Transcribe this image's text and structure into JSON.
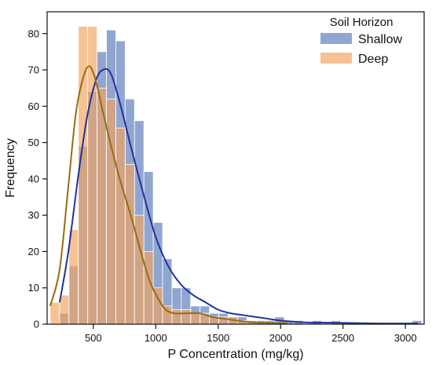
{
  "chart_data": {
    "type": "bar",
    "xlabel": "P Concentration (mg/kg)",
    "ylabel": "Frequency",
    "xlim": [
      130,
      3150
    ],
    "ylim": [
      0,
      86
    ],
    "xticks": [
      500,
      1000,
      1500,
      2000,
      2500,
      3000
    ],
    "yticks": [
      0,
      10,
      20,
      30,
      40,
      50,
      60,
      70,
      80
    ],
    "grid": false,
    "legend": {
      "title": "Soil Horizon",
      "placement": "top-right"
    },
    "bin_width": 75,
    "series": [
      {
        "name": "Shallow",
        "color": "#4c6fb5",
        "kde_color": "#23329a",
        "bins": [
          {
            "x0": 230,
            "value": 3
          },
          {
            "x0": 305,
            "value": 16
          },
          {
            "x0": 380,
            "value": 49
          },
          {
            "x0": 455,
            "value": 64
          },
          {
            "x0": 530,
            "value": 75
          },
          {
            "x0": 605,
            "value": 81
          },
          {
            "x0": 680,
            "value": 78
          },
          {
            "x0": 755,
            "value": 62
          },
          {
            "x0": 830,
            "value": 56
          },
          {
            "x0": 905,
            "value": 42
          },
          {
            "x0": 980,
            "value": 28
          },
          {
            "x0": 1055,
            "value": 18
          },
          {
            "x0": 1130,
            "value": 10
          },
          {
            "x0": 1205,
            "value": 10
          },
          {
            "x0": 1280,
            "value": 5
          },
          {
            "x0": 1355,
            "value": 5
          },
          {
            "x0": 1430,
            "value": 3
          },
          {
            "x0": 1505,
            "value": 3
          },
          {
            "x0": 1580,
            "value": 2
          },
          {
            "x0": 1655,
            "value": 2
          },
          {
            "x0": 1730,
            "value": 1
          },
          {
            "x0": 1805,
            "value": 1
          },
          {
            "x0": 1880,
            "value": 1
          },
          {
            "x0": 1955,
            "value": 2
          },
          {
            "x0": 2030,
            "value": 1
          },
          {
            "x0": 2105,
            "value": 1
          },
          {
            "x0": 2255,
            "value": 1
          },
          {
            "x0": 2405,
            "value": 1
          },
          {
            "x0": 3055,
            "value": 1
          }
        ],
        "kde": [
          [
            230,
            6
          ],
          [
            300,
            20
          ],
          [
            380,
            41
          ],
          [
            450,
            57
          ],
          [
            520,
            67
          ],
          [
            575,
            70
          ],
          [
            640,
            69
          ],
          [
            720,
            60
          ],
          [
            800,
            49
          ],
          [
            900,
            36
          ],
          [
            1000,
            24
          ],
          [
            1100,
            16
          ],
          [
            1200,
            11
          ],
          [
            1300,
            8
          ],
          [
            1400,
            6
          ],
          [
            1500,
            4
          ],
          [
            1600,
            3
          ],
          [
            1700,
            2.5
          ],
          [
            1800,
            2
          ],
          [
            1900,
            1.5
          ],
          [
            2000,
            1
          ],
          [
            2200,
            0.5
          ],
          [
            2400,
            0.4
          ],
          [
            2600,
            0.3
          ],
          [
            2800,
            0.2
          ],
          [
            3000,
            0.2
          ],
          [
            3100,
            0.2
          ]
        ]
      },
      {
        "name": "Deep",
        "color": "#f2a35e",
        "kde_color": "#9b6a12",
        "bins": [
          {
            "x0": 155,
            "value": 6
          },
          {
            "x0": 230,
            "value": 8
          },
          {
            "x0": 305,
            "value": 26
          },
          {
            "x0": 380,
            "value": 82
          },
          {
            "x0": 455,
            "value": 82
          },
          {
            "x0": 530,
            "value": 65
          },
          {
            "x0": 605,
            "value": 62
          },
          {
            "x0": 680,
            "value": 54
          },
          {
            "x0": 755,
            "value": 44
          },
          {
            "x0": 830,
            "value": 30
          },
          {
            "x0": 905,
            "value": 20
          },
          {
            "x0": 980,
            "value": 10
          },
          {
            "x0": 1055,
            "value": 5
          },
          {
            "x0": 1130,
            "value": 4
          },
          {
            "x0": 1205,
            "value": 4
          },
          {
            "x0": 1280,
            "value": 3
          },
          {
            "x0": 1355,
            "value": 3
          },
          {
            "x0": 1430,
            "value": 2
          },
          {
            "x0": 1505,
            "value": 2
          },
          {
            "x0": 1580,
            "value": 2
          },
          {
            "x0": 1655,
            "value": 1
          },
          {
            "x0": 1730,
            "value": 1
          },
          {
            "x0": 2405,
            "value": 1
          }
        ],
        "kde": [
          [
            155,
            5
          ],
          [
            230,
            15
          ],
          [
            300,
            38
          ],
          [
            360,
            58
          ],
          [
            420,
            68
          ],
          [
            470,
            71
          ],
          [
            520,
            67
          ],
          [
            580,
            58
          ],
          [
            650,
            48
          ],
          [
            720,
            39
          ],
          [
            800,
            30
          ],
          [
            880,
            20
          ],
          [
            950,
            12
          ],
          [
            1020,
            7
          ],
          [
            1080,
            4
          ],
          [
            1150,
            3
          ],
          [
            1250,
            3
          ],
          [
            1350,
            3
          ],
          [
            1450,
            2
          ],
          [
            1550,
            1.5
          ],
          [
            1650,
            1
          ],
          [
            1750,
            0.6
          ],
          [
            1850,
            0.4
          ],
          [
            1950,
            0.3
          ],
          [
            2050,
            0.3
          ]
        ]
      }
    ]
  }
}
